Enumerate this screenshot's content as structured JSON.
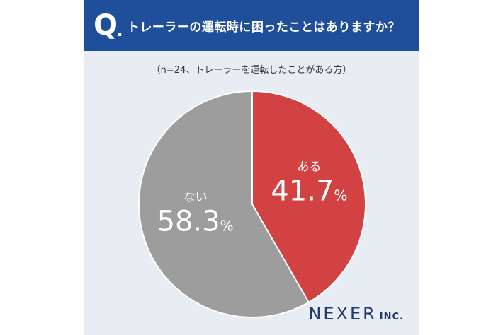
{
  "header": {
    "q_mark": "Q",
    "q_dot": ".",
    "question": "トレーラーの運転時に困ったことはありますか？"
  },
  "subtitle": "（n=24、トレーラーを運転したことがある方）",
  "logo": {
    "name": "NEXER",
    "suffix": "INC."
  },
  "colors": {
    "header_bg": "#1f4e9a",
    "card_bg": "#e8edf4",
    "yes": "#d24242",
    "no": "#9d9d9d"
  },
  "chart_data": {
    "type": "pie",
    "title": "トレーラーの運転時に困ったことはありますか？",
    "slices": [
      {
        "label": "ある",
        "value": 41.7,
        "color": "#d24242"
      },
      {
        "label": "ない",
        "value": 58.3,
        "color": "#9d9d9d"
      }
    ],
    "unit": "%"
  }
}
